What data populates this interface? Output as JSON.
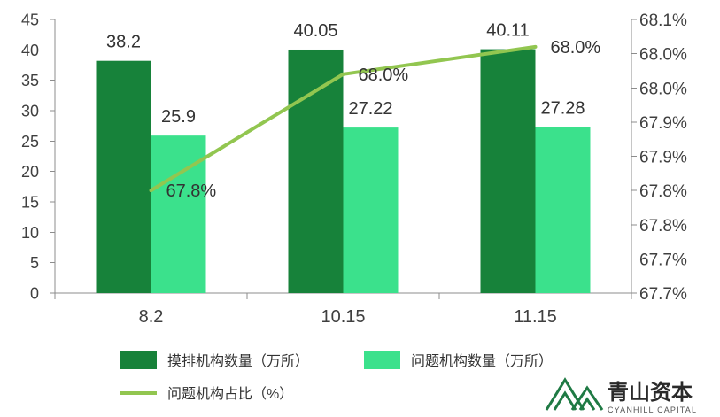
{
  "chart_data": {
    "type": "bar",
    "categories": [
      "8.2",
      "10.15",
      "11.15"
    ],
    "series": [
      {
        "name": "摸排机构数量（万所）",
        "type": "bar",
        "axis": "left",
        "color": "#17823a",
        "values": [
          38.2,
          40.05,
          40.11
        ],
        "labels": [
          "38.2",
          "40.05",
          "40.11"
        ]
      },
      {
        "name": "问题机构数量（万所）",
        "type": "bar",
        "axis": "left",
        "color": "#3be18c",
        "values": [
          25.9,
          27.22,
          27.28
        ],
        "labels": [
          "25.9",
          "27.22",
          "27.28"
        ]
      },
      {
        "name": "问题机构占比（%）",
        "type": "line",
        "axis": "right",
        "color": "#92c650",
        "values": [
          67.8,
          67.97,
          68.01
        ],
        "labels": [
          "67.8%",
          "68.0%",
          "68.0%"
        ]
      }
    ],
    "y_left": {
      "min": 0,
      "max": 45,
      "ticks": [
        0,
        5,
        10,
        15,
        20,
        25,
        30,
        35,
        40,
        45
      ]
    },
    "y_right": {
      "min": 67.65,
      "max": 68.05,
      "tick_labels": [
        "67.7%",
        "67.7%",
        "67.8%",
        "67.8%",
        "67.9%",
        "67.9%",
        "68.0%",
        "68.0%",
        "68.1%"
      ]
    },
    "grid": false,
    "legend_position": "bottom"
  },
  "logo": {
    "name": "青山资本",
    "tagline": "CYANHILL CAPITAL",
    "icon": "mountain-icon",
    "brand_color": "#1f7a44"
  }
}
